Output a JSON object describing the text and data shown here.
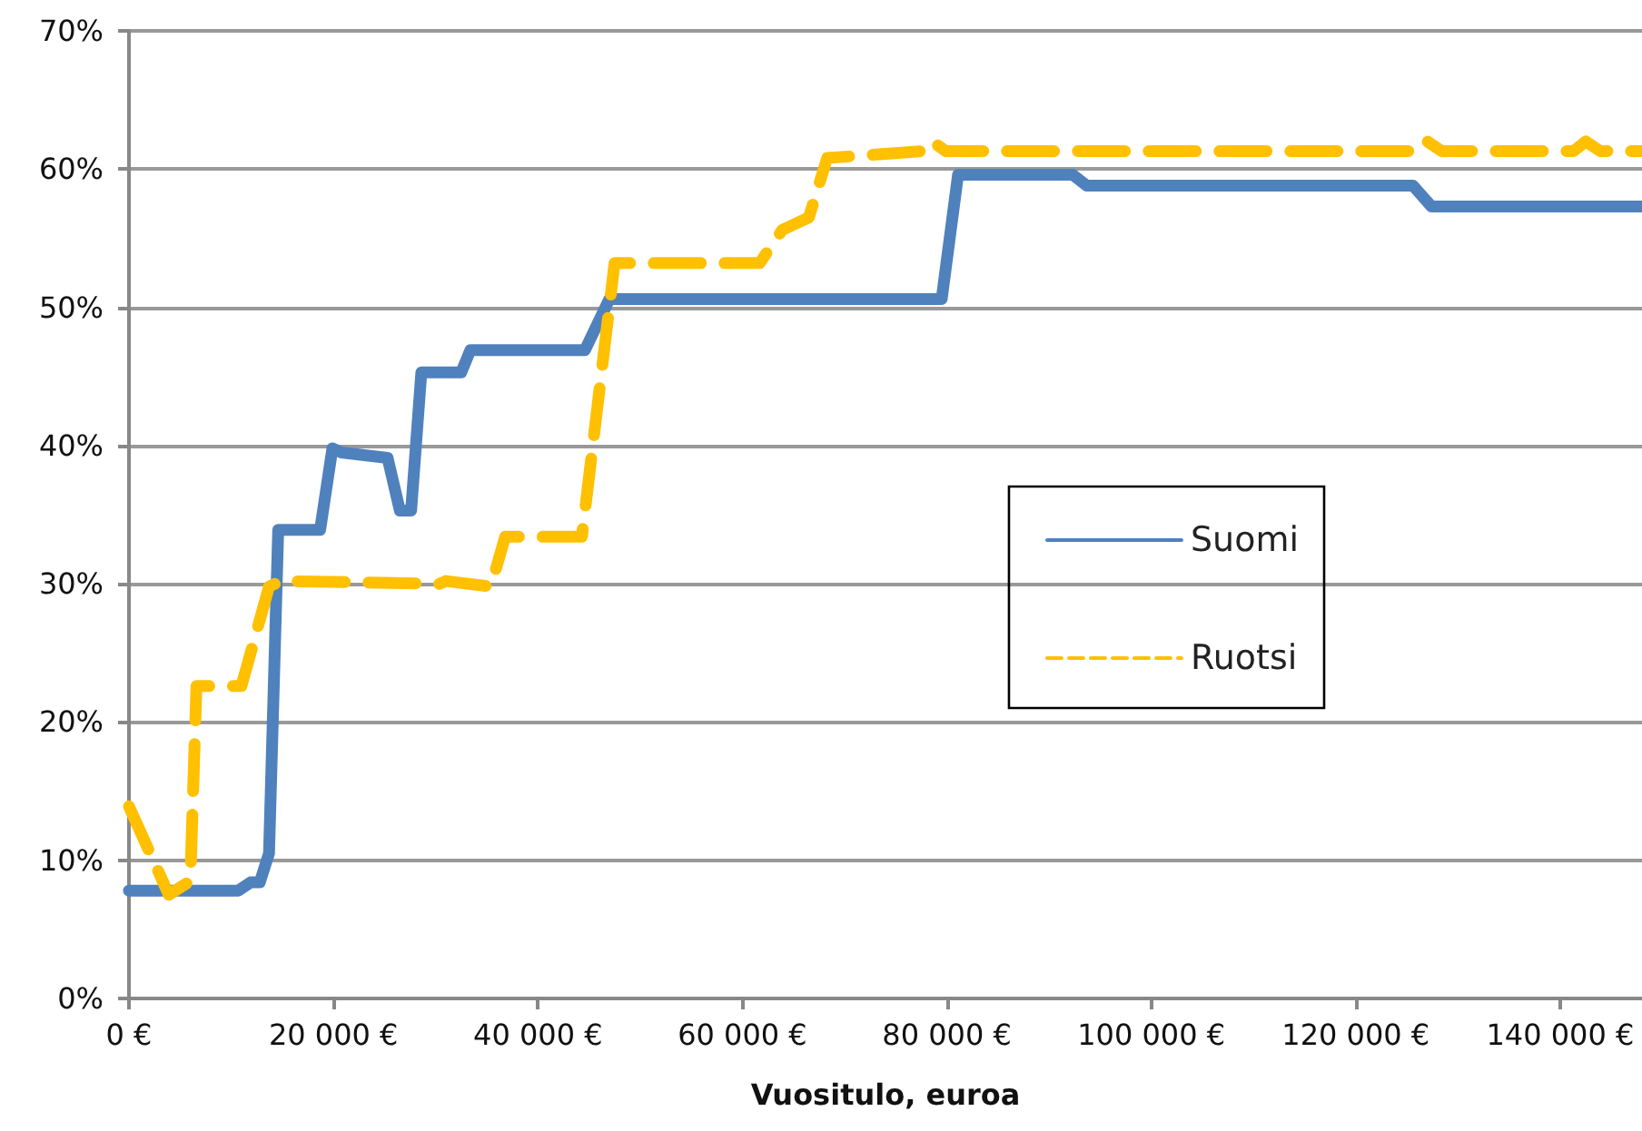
{
  "chart_data": {
    "type": "line",
    "xlabel": "Vuositulo, euroa",
    "xlim": [
      0,
      148000
    ],
    "xticks": [
      {
        "value": 0,
        "label": "0 €"
      },
      {
        "value": 20000,
        "label": "20 000 €"
      },
      {
        "value": 40000,
        "label": "40 000 €"
      },
      {
        "value": 60000,
        "label": "60 000 €"
      },
      {
        "value": 80000,
        "label": "80 000 €"
      },
      {
        "value": 100000,
        "label": "100 000 €"
      },
      {
        "value": 120000,
        "label": "120 000 €"
      },
      {
        "value": 140000,
        "label": "140 000 €"
      }
    ],
    "ylim": [
      0,
      70
    ],
    "yticks": [
      {
        "value": 0,
        "label": "0%"
      },
      {
        "value": 10,
        "label": "10%"
      },
      {
        "value": 20,
        "label": "20%"
      },
      {
        "value": 30,
        "label": "30%"
      },
      {
        "value": 40,
        "label": "40%"
      },
      {
        "value": 50,
        "label": "50%"
      },
      {
        "value": 60,
        "label": "60%"
      },
      {
        "value": 70,
        "label": "70%"
      }
    ],
    "grid": "y",
    "legend": "right",
    "marker": "none",
    "series": [
      {
        "name": "Suomi",
        "color": "#4f81bd",
        "line_style": "solid",
        "x": [
          0,
          10700,
          11900,
          12800,
          13700,
          14600,
          18700,
          19900,
          20800,
          25300,
          26500,
          27600,
          28600,
          32500,
          33400,
          44600,
          45700,
          47000,
          79500,
          81100,
          92300,
          93700,
          125600,
          127400,
          148000
        ],
        "values": [
          7.8,
          7.8,
          8.4,
          8.4,
          10.5,
          33.9,
          33.9,
          39.8,
          39.5,
          39.1,
          35.3,
          35.3,
          45.3,
          45.3,
          46.9,
          46.9,
          48.6,
          50.6,
          50.6,
          59.6,
          59.6,
          58.8,
          58.8,
          57.3,
          57.3
        ]
      },
      {
        "name": "Ruotsi",
        "color": "#ffc000",
        "line_style": "dashed",
        "x": [
          0,
          3900,
          6000,
          6600,
          11000,
          13700,
          14900,
          30400,
          31000,
          35400,
          36800,
          44300,
          47500,
          61700,
          63900,
          66500,
          68300,
          77700,
          78600,
          79900,
          126100,
          127000,
          128400,
          141300,
          142500,
          143900,
          148000
        ],
        "values": [
          13.9,
          7.5,
          8.5,
          22.6,
          22.6,
          29.8,
          30.2,
          30,
          30.2,
          29.8,
          33.4,
          33.4,
          53.2,
          53.2,
          55.6,
          56.5,
          60.8,
          61.3,
          62,
          61.3,
          61.3,
          62,
          61.3,
          61.3,
          62,
          61.3,
          61.3
        ]
      }
    ]
  }
}
